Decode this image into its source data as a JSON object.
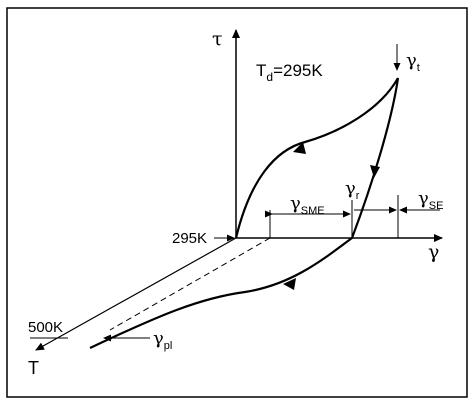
{
  "diagram": {
    "axis_labels": {
      "tau": "τ",
      "gamma": "γ",
      "temperature": "T"
    },
    "condition": {
      "prefix": "T",
      "subscript": "d",
      "value": "=295K"
    },
    "temperatures": {
      "upper": "295K",
      "lower": "500K"
    },
    "strain_labels": {
      "gamma_t": {
        "symbol": "γ",
        "subscript": "t"
      },
      "gamma_r": {
        "symbol": "γ",
        "subscript": "r"
      },
      "gamma_sme": {
        "symbol": "γ",
        "subscript": "SME"
      },
      "gamma_se": {
        "symbol": "γ",
        "subscript": "SE"
      },
      "gamma_pl": {
        "symbol": "γ",
        "subscript": "pl"
      }
    }
  }
}
